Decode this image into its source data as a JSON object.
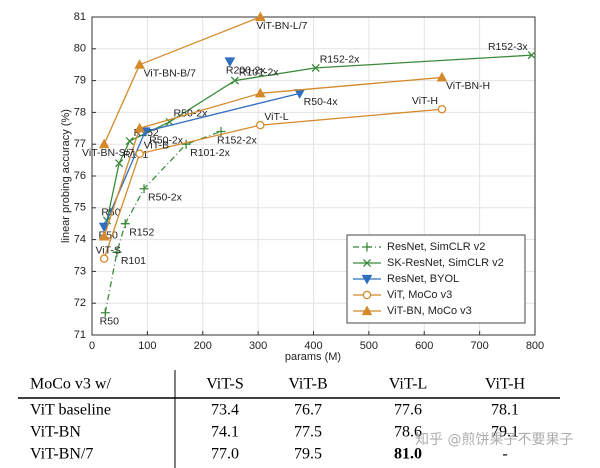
{
  "chart_data": {
    "type": "line",
    "xlabel": "params (M)",
    "ylabel": "linear probing accuracy (%)",
    "xlim": [
      0,
      800
    ],
    "xticks": [
      0,
      100,
      200,
      300,
      400,
      500,
      600,
      700,
      800
    ],
    "ylim": [
      71,
      81
    ],
    "yticks": [
      71,
      72,
      73,
      74,
      75,
      76,
      77,
      78,
      79,
      80,
      81
    ],
    "grid": true,
    "legend": "lower right",
    "series": [
      {
        "name": "ResNet, SimCLR v2",
        "color": "#3b8a3b",
        "marker": "plus",
        "line_style": "dashdot",
        "x": [
          24,
          45,
          60,
          94,
          170,
          233
        ],
        "values": [
          71.7,
          73.6,
          74.5,
          75.6,
          77.0,
          77.4
        ],
        "point_labels": [
          "R50",
          "R101",
          "R152",
          "R50-2x",
          "R101-2x",
          "R152-2x"
        ]
      },
      {
        "name": "SK-ResNet, SimCLR v2",
        "color": "#3b8a3b",
        "marker": "x",
        "line_style": "solid",
        "x": [
          27,
          49,
          68,
          140,
          258,
          404,
          794
        ],
        "values": [
          74.6,
          76.4,
          77.1,
          77.7,
          79.0,
          79.4,
          79.8
        ],
        "point_labels": [
          "R50",
          "R101",
          "R152",
          "R50-2x",
          "R101-2x",
          "R152-2x",
          "R152-3x"
        ]
      },
      {
        "name": "ResNet, BYOL",
        "color": "#2f6fc0",
        "marker": "triangle-down",
        "line_style": "solid",
        "x": [
          22,
          96,
          375,
          null,
          249
        ],
        "values": [
          74.4,
          77.4,
          78.6,
          null,
          79.6
        ],
        "point_labels": [
          "R50",
          "R50-2x",
          "R50-4x",
          null,
          "R200-2x"
        ]
      },
      {
        "name": "ViT, MoCo v3",
        "color": "#d4892a",
        "marker": "circle",
        "line_style": "solid",
        "x": [
          22,
          86,
          304,
          632
        ],
        "values": [
          73.4,
          76.7,
          77.6,
          78.1
        ],
        "point_labels": [
          "ViT-S",
          "ViT-B",
          "ViT-L",
          "ViT-H"
        ]
      },
      {
        "name": "ViT-BN, MoCo v3",
        "color": "#d4892a",
        "marker": "triangle-up",
        "line_style": "solid",
        "x": [
          22,
          86,
          304,
          632,
          null,
          22,
          86,
          304
        ],
        "values": [
          74.1,
          77.5,
          78.6,
          79.1,
          null,
          77.0,
          79.5,
          81.0
        ],
        "point_labels": [
          null,
          null,
          null,
          "ViT-BN-H",
          null,
          "ViT-BN-S/7",
          "ViT-BN-B/7",
          "ViT-BN-L/7"
        ]
      }
    ]
  },
  "table": {
    "header": [
      "MoCo v3 w/",
      "ViT-S",
      "ViT-B",
      "ViT-L",
      "ViT-H"
    ],
    "rows": [
      [
        "ViT baseline",
        "73.4",
        "76.7",
        "77.6",
        "78.1"
      ],
      [
        "ViT-BN",
        "74.1",
        "77.5",
        "78.6",
        "79.1"
      ],
      [
        "ViT-BN/7",
        "77.0",
        "79.5",
        "81.0",
        "-"
      ]
    ]
  },
  "watermark": "知乎 @煎饼果子不要果子"
}
